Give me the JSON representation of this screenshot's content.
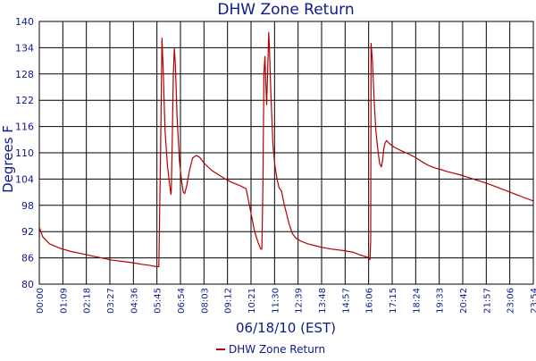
{
  "chart_data": {
    "type": "line",
    "title": "DHW Zone Return",
    "xlabel": "06/18/10 (EST)",
    "ylabel": "Degrees F",
    "xlim_minutes": [
      0,
      1434
    ],
    "ylim": [
      80,
      140
    ],
    "y_ticks": [
      80,
      86,
      92,
      98,
      104,
      110,
      116,
      122,
      128,
      134,
      140
    ],
    "x_ticks": [
      "00:00",
      "01:09",
      "02:18",
      "03:27",
      "04:36",
      "05:45",
      "06:54",
      "08:03",
      "09:12",
      "10:21",
      "11:30",
      "12:39",
      "13:48",
      "14:57",
      "16:06",
      "17:15",
      "18:24",
      "19:33",
      "20:42",
      "21:57",
      "23:06",
      "23:54"
    ],
    "grid": true,
    "legend_position": "bottom",
    "series": [
      {
        "name": "DHW Zone Return",
        "color": "#b40000",
        "points": [
          [
            0,
            93
          ],
          [
            10,
            90.8
          ],
          [
            30,
            89.2
          ],
          [
            60,
            88.2
          ],
          [
            90,
            87.5
          ],
          [
            120,
            87
          ],
          [
            150,
            86.5
          ],
          [
            180,
            86
          ],
          [
            210,
            85.5
          ],
          [
            240,
            85.2
          ],
          [
            270,
            84.9
          ],
          [
            300,
            84.5
          ],
          [
            320,
            84.3
          ],
          [
            340,
            84
          ],
          [
            347,
            84
          ],
          [
            352,
            110
          ],
          [
            356,
            136.2
          ],
          [
            360,
            128
          ],
          [
            365,
            115
          ],
          [
            372,
            107
          ],
          [
            378,
            103
          ],
          [
            382,
            100.5
          ],
          [
            383,
            101
          ],
          [
            386,
            113
          ],
          [
            389,
            128
          ],
          [
            392,
            134
          ],
          [
            395,
            130
          ],
          [
            400,
            118
          ],
          [
            407,
            108
          ],
          [
            413,
            103.5
          ],
          [
            418,
            101
          ],
          [
            422,
            100.7
          ],
          [
            428,
            102.5
          ],
          [
            436,
            106
          ],
          [
            445,
            108.8
          ],
          [
            455,
            109.4
          ],
          [
            465,
            109
          ],
          [
            480,
            107.5
          ],
          [
            500,
            106
          ],
          [
            520,
            105
          ],
          [
            540,
            104
          ],
          [
            560,
            103.2
          ],
          [
            580,
            102.6
          ],
          [
            600,
            101.8
          ],
          [
            605,
            100
          ],
          [
            615,
            96
          ],
          [
            625,
            92
          ],
          [
            635,
            89.5
          ],
          [
            643,
            88
          ],
          [
            646,
            88
          ],
          [
            649,
            102
          ],
          [
            652,
            128
          ],
          [
            655,
            132
          ],
          [
            657,
            127
          ],
          [
            660,
            121
          ],
          [
            663,
            129
          ],
          [
            666,
            137.5
          ],
          [
            668,
            134
          ],
          [
            672,
            124
          ],
          [
            678,
            112
          ],
          [
            684,
            107
          ],
          [
            690,
            104
          ],
          [
            696,
            102
          ],
          [
            703,
            101.3
          ],
          [
            710,
            98.5
          ],
          [
            718,
            96
          ],
          [
            726,
            93.5
          ],
          [
            735,
            91.5
          ],
          [
            745,
            90.5
          ],
          [
            760,
            89.8
          ],
          [
            780,
            89.2
          ],
          [
            800,
            88.8
          ],
          [
            820,
            88.4
          ],
          [
            850,
            88
          ],
          [
            880,
            87.7
          ],
          [
            910,
            87.3
          ],
          [
            930,
            86.7
          ],
          [
            950,
            86.2
          ],
          [
            958,
            86
          ],
          [
            960,
            85.6
          ],
          [
            962,
            90
          ],
          [
            963,
            135
          ],
          [
            967,
            131
          ],
          [
            972,
            122
          ],
          [
            977,
            115
          ],
          [
            983,
            110.5
          ],
          [
            988,
            107.5
          ],
          [
            993,
            106.8
          ],
          [
            997,
            108.5
          ],
          [
            1000,
            111
          ],
          [
            1004,
            112.3
          ],
          [
            1008,
            112.8
          ],
          [
            1015,
            112.2
          ],
          [
            1030,
            111.3
          ],
          [
            1050,
            110.5
          ],
          [
            1070,
            109.8
          ],
          [
            1090,
            109
          ],
          [
            1110,
            108
          ],
          [
            1130,
            107.1
          ],
          [
            1140,
            106.8
          ],
          [
            1150,
            106.5
          ],
          [
            1165,
            106.2
          ],
          [
            1180,
            105.8
          ],
          [
            1200,
            105.4
          ],
          [
            1220,
            105
          ],
          [
            1240,
            104.5
          ],
          [
            1260,
            104
          ],
          [
            1280,
            103.5
          ],
          [
            1300,
            103
          ],
          [
            1320,
            102.4
          ],
          [
            1340,
            101.8
          ],
          [
            1360,
            101.2
          ],
          [
            1380,
            100.6
          ],
          [
            1400,
            100
          ],
          [
            1434,
            99
          ]
        ]
      }
    ]
  }
}
